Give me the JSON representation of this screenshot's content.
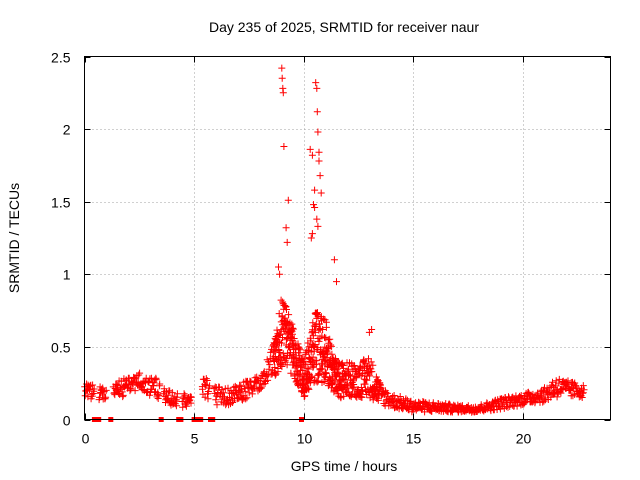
{
  "chart_data": {
    "type": "scatter",
    "title": "Day 235 of 2025, SRMTID for receiver naur",
    "xlabel": "GPS time / hours",
    "ylabel": "SRMTID / TECUs",
    "xlim": [
      0,
      24
    ],
    "ylim": [
      0,
      2.5
    ],
    "xticks": [
      0,
      5,
      10,
      15,
      20
    ],
    "xtick_labels": [
      "0",
      "5",
      "10",
      "15",
      "20"
    ],
    "yticks": [
      0,
      0.5,
      1,
      1.5,
      2,
      2.5
    ],
    "ytick_labels": [
      "0",
      "0.5",
      "1",
      "1.5",
      "2",
      "2.5"
    ],
    "grid": true,
    "marker": "plus",
    "color": "#ff0000",
    "baseline_markers": {
      "marker": "square",
      "y": 0,
      "x": [
        0.45,
        0.55,
        0.65,
        1.2,
        3.5,
        4.3,
        4.4,
        5.0,
        5.15,
        5.3,
        5.75,
        5.85,
        9.9
      ]
    },
    "profile": {
      "x": [
        0,
        1,
        2,
        2.5,
        3.2,
        3.8,
        4.5,
        5,
        5.5,
        6,
        7,
        8,
        8.7,
        9.0,
        9.5,
        10,
        10.5,
        11,
        11.5,
        12,
        12.5,
        13,
        13.5,
        14,
        15,
        16,
        17,
        18,
        19,
        20,
        21,
        21.5,
        22,
        22.8
      ],
      "low": [
        0.15,
        0.12,
        0.17,
        0.2,
        0.15,
        0.1,
        0.08,
        0.1,
        0.15,
        0.1,
        0.1,
        0.2,
        0.3,
        0.35,
        0.3,
        0.15,
        0.25,
        0.25,
        0.15,
        0.15,
        0.15,
        0.15,
        0.1,
        0.08,
        0.05,
        0.05,
        0.05,
        0.05,
        0.07,
        0.1,
        0.12,
        0.15,
        0.15,
        0.15
      ],
      "high": [
        0.25,
        0.22,
        0.3,
        0.33,
        0.3,
        0.2,
        0.18,
        0.2,
        0.3,
        0.25,
        0.25,
        0.3,
        0.55,
        0.85,
        0.65,
        0.4,
        0.75,
        0.7,
        0.4,
        0.4,
        0.38,
        0.45,
        0.25,
        0.18,
        0.13,
        0.12,
        0.1,
        0.1,
        0.15,
        0.18,
        0.22,
        0.3,
        0.27,
        0.24
      ]
    },
    "outliers": {
      "x": [
        9.0,
        9.02,
        9.05,
        9.07,
        9.1,
        9.3,
        8.85,
        8.9,
        9.2,
        9.25,
        10.3,
        10.4,
        10.5,
        10.55,
        10.6,
        10.62,
        10.65,
        10.7,
        10.7,
        10.75,
        10.8,
        10.45,
        10.5,
        10.35,
        10.4,
        10.6,
        10.65,
        11.4,
        11.5,
        13.0,
        13.1
      ],
      "y": [
        2.42,
        2.35,
        2.28,
        2.25,
        1.88,
        1.51,
        1.05,
        1.0,
        1.32,
        1.22,
        1.86,
        1.82,
        1.58,
        2.32,
        2.28,
        2.12,
        1.98,
        1.84,
        1.78,
        1.68,
        1.56,
        1.48,
        1.46,
        1.25,
        1.28,
        1.38,
        1.33,
        1.1,
        0.95,
        0.6,
        0.62
      ]
    }
  }
}
